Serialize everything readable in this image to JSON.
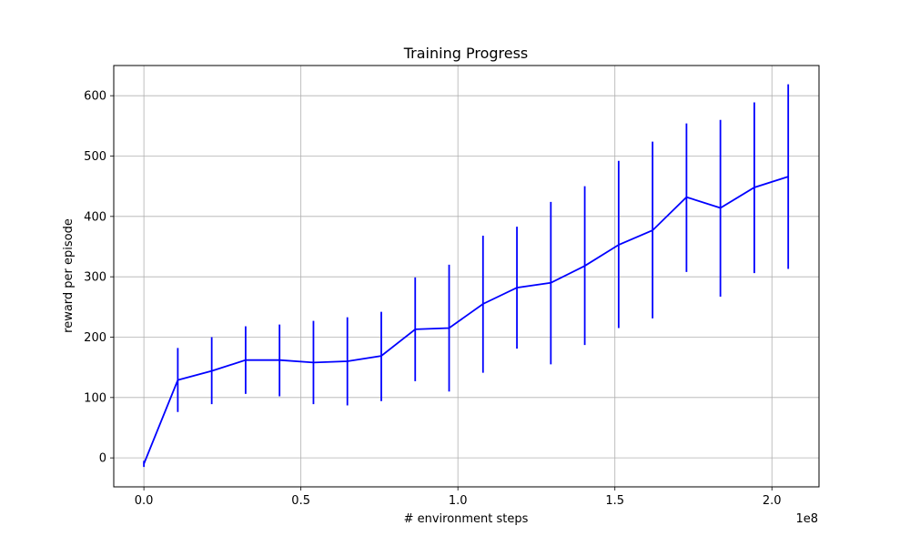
{
  "chart_data": {
    "type": "line",
    "title": "Training Progress",
    "xlabel": "# environment steps",
    "ylabel": "reward per episode",
    "x_multiplier_label": "1e8",
    "x_scale": 100000000,
    "xlim": [
      -9600000,
      215000000
    ],
    "ylim": [
      -48,
      650
    ],
    "x_ticks": [
      0,
      50000000,
      100000000,
      150000000,
      200000000
    ],
    "x_tick_labels": [
      "0.0",
      "0.5",
      "1.0",
      "1.5",
      "2.0"
    ],
    "y_ticks": [
      0,
      100,
      200,
      300,
      400,
      500,
      600
    ],
    "y_tick_labels": [
      "0",
      "100",
      "200",
      "300",
      "400",
      "500",
      "600"
    ],
    "grid": true,
    "color": "#0000ff",
    "series": [
      {
        "x": [
          0,
          10800000,
          21600000,
          32400000,
          43200000,
          54000000,
          64800000,
          75600000,
          86400000,
          97200000,
          108000000,
          118800000,
          129600000,
          140400000,
          151200000,
          162000000,
          172800000,
          183600000,
          194400000,
          205200000
        ],
        "y": [
          -10,
          129,
          144,
          162,
          162,
          158,
          160,
          169,
          213,
          215,
          255,
          282,
          290,
          318,
          353,
          377,
          432,
          414,
          448,
          466
        ],
        "err_low": [
          -15,
          76,
          89,
          106,
          102,
          89,
          87,
          94,
          127,
          110,
          141,
          181,
          155,
          187,
          215,
          231,
          308,
          267,
          306,
          313
        ],
        "err_high": [
          -5,
          182,
          200,
          218,
          221,
          227,
          233,
          242,
          299,
          320,
          368,
          383,
          424,
          450,
          492,
          524,
          554,
          560,
          589,
          619
        ]
      }
    ]
  }
}
